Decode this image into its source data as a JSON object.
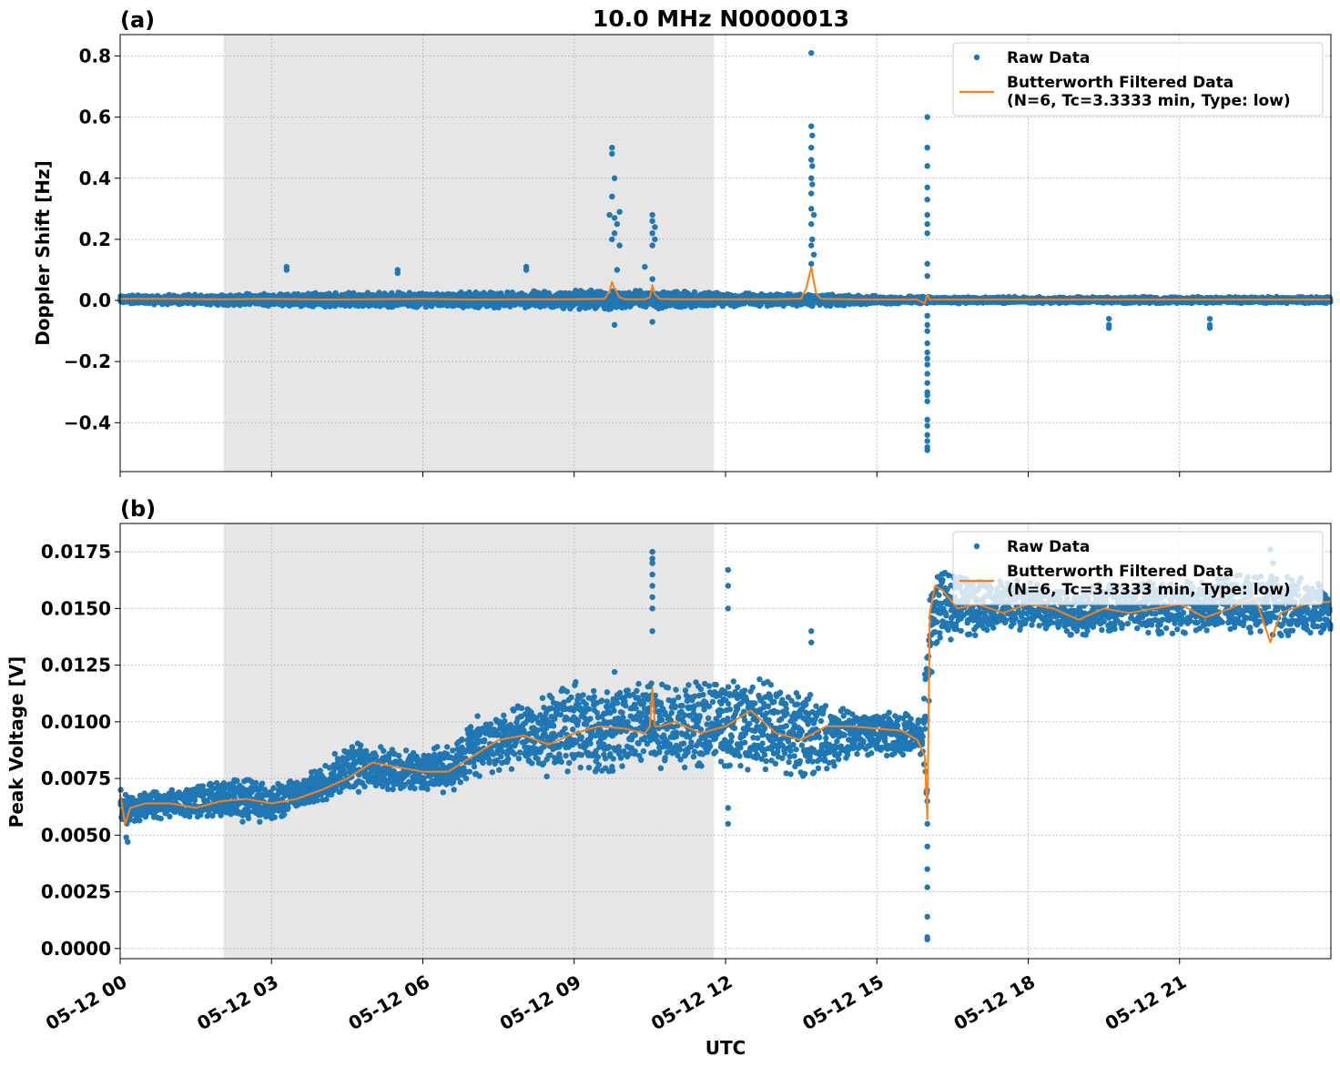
{
  "figure_title": "10.0 MHz N0000013",
  "xlabel": "UTC",
  "legend": {
    "raw": "Raw Data",
    "filtered_line1": "Butterworth Filtered Data",
    "filtered_line2": "(N=6, Tc=3.3333 min, Type: low)"
  },
  "colors": {
    "raw": "#1f77b4",
    "filtered": "#ff7f0e",
    "shade": "#e6e6e6"
  },
  "chart_data": [
    {
      "type": "scatter",
      "panel": "(a)",
      "title": "10.0 MHz N0000013",
      "xlabel": "",
      "ylabel": "Doppler Shift [Hz]",
      "xlim": [
        0,
        24
      ],
      "ylim": [
        -0.56,
        0.87
      ],
      "xticks": [
        0,
        3,
        6,
        9,
        12,
        15,
        18,
        21
      ],
      "yticks": [
        -0.4,
        -0.2,
        0.0,
        0.2,
        0.4,
        0.6,
        0.8
      ],
      "ytick_labels": [
        "−0.4",
        "−0.2",
        "0.0",
        "0.2",
        "0.4",
        "0.6",
        "0.8"
      ],
      "grid": true,
      "legend_position": "top-right",
      "shaded_interval": [
        2.05,
        11.77
      ],
      "series": [
        {
          "name": "Raw Data",
          "kind": "scatter",
          "band": {
            "x": [
              0,
              2,
              4,
              6,
              8,
              9,
              10,
              11,
              12,
              13,
              14,
              15,
              16,
              17,
              18,
              20,
              22,
              24
            ],
            "lower": [
              -0.012,
              -0.015,
              -0.022,
              -0.022,
              -0.025,
              -0.028,
              -0.03,
              -0.03,
              -0.02,
              -0.018,
              -0.02,
              -0.012,
              -0.01,
              -0.009,
              -0.009,
              -0.009,
              -0.009,
              -0.009
            ],
            "upper": [
              0.018,
              0.02,
              0.027,
              0.027,
              0.03,
              0.033,
              0.033,
              0.033,
              0.025,
              0.022,
              0.02,
              0.015,
              0.013,
              0.012,
              0.012,
              0.012,
              0.012,
              0.012
            ]
          },
          "outliers": [
            [
              3.3,
              0.11
            ],
            [
              3.3,
              0.1
            ],
            [
              5.5,
              0.1
            ],
            [
              5.5,
              0.09
            ],
            [
              8.05,
              0.11
            ],
            [
              8.05,
              0.1
            ],
            [
              10.4,
              0.11
            ],
            [
              9.75,
              0.5
            ],
            [
              9.75,
              0.48
            ],
            [
              9.8,
              0.4
            ],
            [
              9.75,
              0.34
            ],
            [
              9.7,
              0.28
            ],
            [
              9.8,
              0.27
            ],
            [
              9.9,
              0.29
            ],
            [
              9.85,
              0.25
            ],
            [
              9.8,
              0.22
            ],
            [
              9.75,
              0.2
            ],
            [
              9.9,
              0.18
            ],
            [
              9.85,
              0.1
            ],
            [
              9.8,
              -0.08
            ],
            [
              10.55,
              0.28
            ],
            [
              10.55,
              0.26
            ],
            [
              10.6,
              0.24
            ],
            [
              10.55,
              0.22
            ],
            [
              10.6,
              0.2
            ],
            [
              10.55,
              0.18
            ],
            [
              10.55,
              0.07
            ],
            [
              10.55,
              -0.07
            ],
            [
              13.7,
              0.81
            ],
            [
              13.7,
              0.57
            ],
            [
              13.72,
              0.54
            ],
            [
              13.7,
              0.5
            ],
            [
              13.7,
              0.46
            ],
            [
              13.72,
              0.44
            ],
            [
              13.7,
              0.4
            ],
            [
              13.72,
              0.38
            ],
            [
              13.7,
              0.35
            ],
            [
              13.7,
              0.3
            ],
            [
              13.75,
              0.28
            ],
            [
              13.7,
              0.25
            ],
            [
              13.72,
              0.2
            ],
            [
              13.7,
              0.18
            ],
            [
              13.75,
              0.15
            ],
            [
              13.7,
              0.12
            ],
            [
              16.0,
              0.6
            ],
            [
              16.0,
              0.5
            ],
            [
              16.0,
              0.44
            ],
            [
              16.0,
              0.37
            ],
            [
              16.0,
              0.33
            ],
            [
              16.0,
              0.28
            ],
            [
              16.0,
              0.25
            ],
            [
              16.0,
              0.22
            ],
            [
              16.0,
              0.12
            ],
            [
              16.0,
              0.08
            ],
            [
              16.0,
              -0.05
            ],
            [
              16.0,
              -0.08
            ],
            [
              16.0,
              -0.1
            ],
            [
              16.0,
              -0.14
            ],
            [
              16.0,
              -0.17
            ],
            [
              16.0,
              -0.19
            ],
            [
              16.0,
              -0.21
            ],
            [
              16.0,
              -0.24
            ],
            [
              16.0,
              -0.27
            ],
            [
              16.0,
              -0.3
            ],
            [
              16.0,
              -0.31
            ],
            [
              16.0,
              -0.33
            ],
            [
              16.0,
              -0.39
            ],
            [
              16.0,
              -0.41
            ],
            [
              16.0,
              -0.44
            ],
            [
              16.0,
              -0.46
            ],
            [
              16.0,
              -0.48
            ],
            [
              16.0,
              -0.49
            ],
            [
              19.6,
              -0.06
            ],
            [
              19.6,
              -0.08
            ],
            [
              19.6,
              -0.09
            ],
            [
              21.6,
              -0.06
            ],
            [
              21.6,
              -0.08
            ],
            [
              21.6,
              -0.09
            ]
          ]
        },
        {
          "name": "Butterworth Filtered Data (N=6, Tc=3.3333 min, Type: low)",
          "kind": "line",
          "x": [
            0,
            1,
            2,
            3,
            4,
            5,
            6,
            7,
            8,
            9,
            9.6,
            9.7,
            9.75,
            9.8,
            9.9,
            10.0,
            10.4,
            10.5,
            10.55,
            10.6,
            10.7,
            11,
            12,
            13,
            13.5,
            13.6,
            13.7,
            13.75,
            13.8,
            13.9,
            14.5,
            15,
            15.8,
            15.95,
            16.0,
            16.05,
            16.2,
            17,
            18,
            19,
            20,
            21,
            22,
            23,
            24
          ],
          "y": [
            0.005,
            0.005,
            0.004,
            0.005,
            0.003,
            0.004,
            0.005,
            0.003,
            0.004,
            0.004,
            0.005,
            0.03,
            0.06,
            0.04,
            0.01,
            0.004,
            0.004,
            0.01,
            0.05,
            0.02,
            0.005,
            0.004,
            0.004,
            0.004,
            0.006,
            0.04,
            0.11,
            0.06,
            0.02,
            0.005,
            0.004,
            0.003,
            0.003,
            -0.01,
            0.02,
            0.002,
            0.003,
            0.003,
            0.003,
            0.003,
            0.003,
            0.003,
            0.003,
            0.003,
            0.003
          ]
        }
      ]
    },
    {
      "type": "scatter",
      "panel": "(b)",
      "xlabel": "UTC",
      "ylabel": "Peak Voltage [V]",
      "xlim": [
        0,
        24
      ],
      "ylim": [
        -0.00045,
        0.01875
      ],
      "xticks": [
        0,
        3,
        6,
        9,
        12,
        15,
        18,
        21
      ],
      "xtick_labels": [
        "05-12 00",
        "05-12 03",
        "05-12 06",
        "05-12 09",
        "05-12 12",
        "05-12 15",
        "05-12 18",
        "05-12 21"
      ],
      "yticks": [
        0.0,
        0.0025,
        0.005,
        0.0075,
        0.01,
        0.0125,
        0.015,
        0.0175
      ],
      "ytick_labels": [
        "0.0000",
        "0.0025",
        "0.0050",
        "0.0075",
        "0.0100",
        "0.0125",
        "0.0150",
        "0.0175"
      ],
      "grid": true,
      "legend_position": "top-right",
      "shaded_interval": [
        2.05,
        11.77
      ],
      "series": [
        {
          "name": "Raw Data",
          "kind": "scatter",
          "band": {
            "x": [
              0,
              0.1,
              0.2,
              1,
              2,
              2.5,
              3,
              3.5,
              4,
              4.5,
              5,
              5.5,
              6,
              6.5,
              7,
              7.5,
              8,
              8.5,
              9,
              9.5,
              10,
              10.5,
              11,
              11.5,
              12,
              12.5,
              13,
              13.5,
              14,
              14.5,
              15,
              15.5,
              15.9,
              16.0,
              16.1,
              16.3,
              17,
              18,
              19,
              20,
              21,
              22,
              23,
              24
            ],
            "lower": [
              0.0055,
              0.005,
              0.0055,
              0.0058,
              0.0058,
              0.0055,
              0.0056,
              0.006,
              0.0065,
              0.0068,
              0.007,
              0.007,
              0.007,
              0.0068,
              0.0075,
              0.0078,
              0.0078,
              0.0075,
              0.0078,
              0.0078,
              0.0078,
              0.008,
              0.0078,
              0.008,
              0.008,
              0.0078,
              0.0078,
              0.0075,
              0.0078,
              0.0085,
              0.0085,
              0.0085,
              0.0085,
              0.005,
              0.013,
              0.0135,
              0.0138,
              0.014,
              0.0138,
              0.014,
              0.0138,
              0.014,
              0.0138,
              0.0138
            ],
            "upper": [
              0.007,
              0.0072,
              0.0068,
              0.007,
              0.0074,
              0.0075,
              0.0072,
              0.0075,
              0.008,
              0.0092,
              0.009,
              0.0088,
              0.0088,
              0.009,
              0.0102,
              0.0105,
              0.0108,
              0.0112,
              0.0118,
              0.0115,
              0.0118,
              0.0118,
              0.0115,
              0.0118,
              0.012,
              0.012,
              0.0118,
              0.0115,
              0.0108,
              0.0105,
              0.0105,
              0.0105,
              0.01,
              0.015,
              0.0168,
              0.0168,
              0.0165,
              0.0162,
              0.016,
              0.0162,
              0.0162,
              0.0165,
              0.0165,
              0.0162
            ]
          },
          "outliers": [
            [
              0.15,
              0.0047
            ],
            [
              0.12,
              0.0049
            ],
            [
              10.55,
              0.0175
            ],
            [
              10.55,
              0.0172
            ],
            [
              10.55,
              0.017
            ],
            [
              10.55,
              0.0165
            ],
            [
              10.55,
              0.016
            ],
            [
              10.55,
              0.0155
            ],
            [
              10.55,
              0.015
            ],
            [
              10.55,
              0.014
            ],
            [
              12.05,
              0.0167
            ],
            [
              12.05,
              0.016
            ],
            [
              12.05,
              0.015
            ],
            [
              12.05,
              0.0055
            ],
            [
              12.05,
              0.0062
            ],
            [
              9.8,
              0.0122
            ],
            [
              13.7,
              0.014
            ],
            [
              13.7,
              0.0135
            ],
            [
              16.0,
              0.0005
            ],
            [
              16.0,
              0.0004
            ],
            [
              16.0,
              0.0014
            ],
            [
              16.0,
              0.0027
            ],
            [
              16.0,
              0.0035
            ],
            [
              16.0,
              0.0045
            ],
            [
              16.0,
              0.0055
            ],
            [
              16.0,
              0.0065
            ],
            [
              22.8,
              0.0176
            ],
            [
              22.85,
              0.017
            ]
          ]
        },
        {
          "name": "Butterworth Filtered Data (N=6, Tc=3.3333 min, Type: low)",
          "kind": "line",
          "x": [
            0,
            0.1,
            0.2,
            0.5,
            1,
            1.5,
            2,
            2.5,
            3,
            3.5,
            4,
            4.5,
            5,
            5.5,
            6,
            6.5,
            7,
            7.5,
            8,
            8.5,
            9,
            9.5,
            10,
            10.4,
            10.5,
            10.55,
            10.6,
            10.7,
            11,
            11.5,
            12,
            12.5,
            13,
            13.5,
            14,
            14.5,
            15,
            15.5,
            15.8,
            15.95,
            16.0,
            16.05,
            16.15,
            16.3,
            16.6,
            17,
            17.5,
            18,
            18.5,
            19,
            19.5,
            20,
            20.5,
            21,
            21.5,
            22,
            22.5,
            22.8,
            23,
            23.5,
            24
          ],
          "y": [
            0.0068,
            0.0055,
            0.0062,
            0.0064,
            0.0064,
            0.0062,
            0.0065,
            0.0066,
            0.0064,
            0.0066,
            0.007,
            0.0075,
            0.0082,
            0.008,
            0.0078,
            0.0078,
            0.0085,
            0.0092,
            0.0094,
            0.009,
            0.0095,
            0.0098,
            0.0097,
            0.0095,
            0.0098,
            0.0115,
            0.0098,
            0.0098,
            0.01,
            0.0095,
            0.0098,
            0.0105,
            0.0095,
            0.0092,
            0.0098,
            0.0098,
            0.0097,
            0.0096,
            0.0092,
            0.0085,
            0.0057,
            0.0148,
            0.016,
            0.0158,
            0.015,
            0.0152,
            0.0148,
            0.0152,
            0.015,
            0.0145,
            0.015,
            0.0148,
            0.015,
            0.0152,
            0.0146,
            0.015,
            0.0155,
            0.0135,
            0.0148,
            0.0152,
            0.0153
          ]
        }
      ]
    }
  ]
}
